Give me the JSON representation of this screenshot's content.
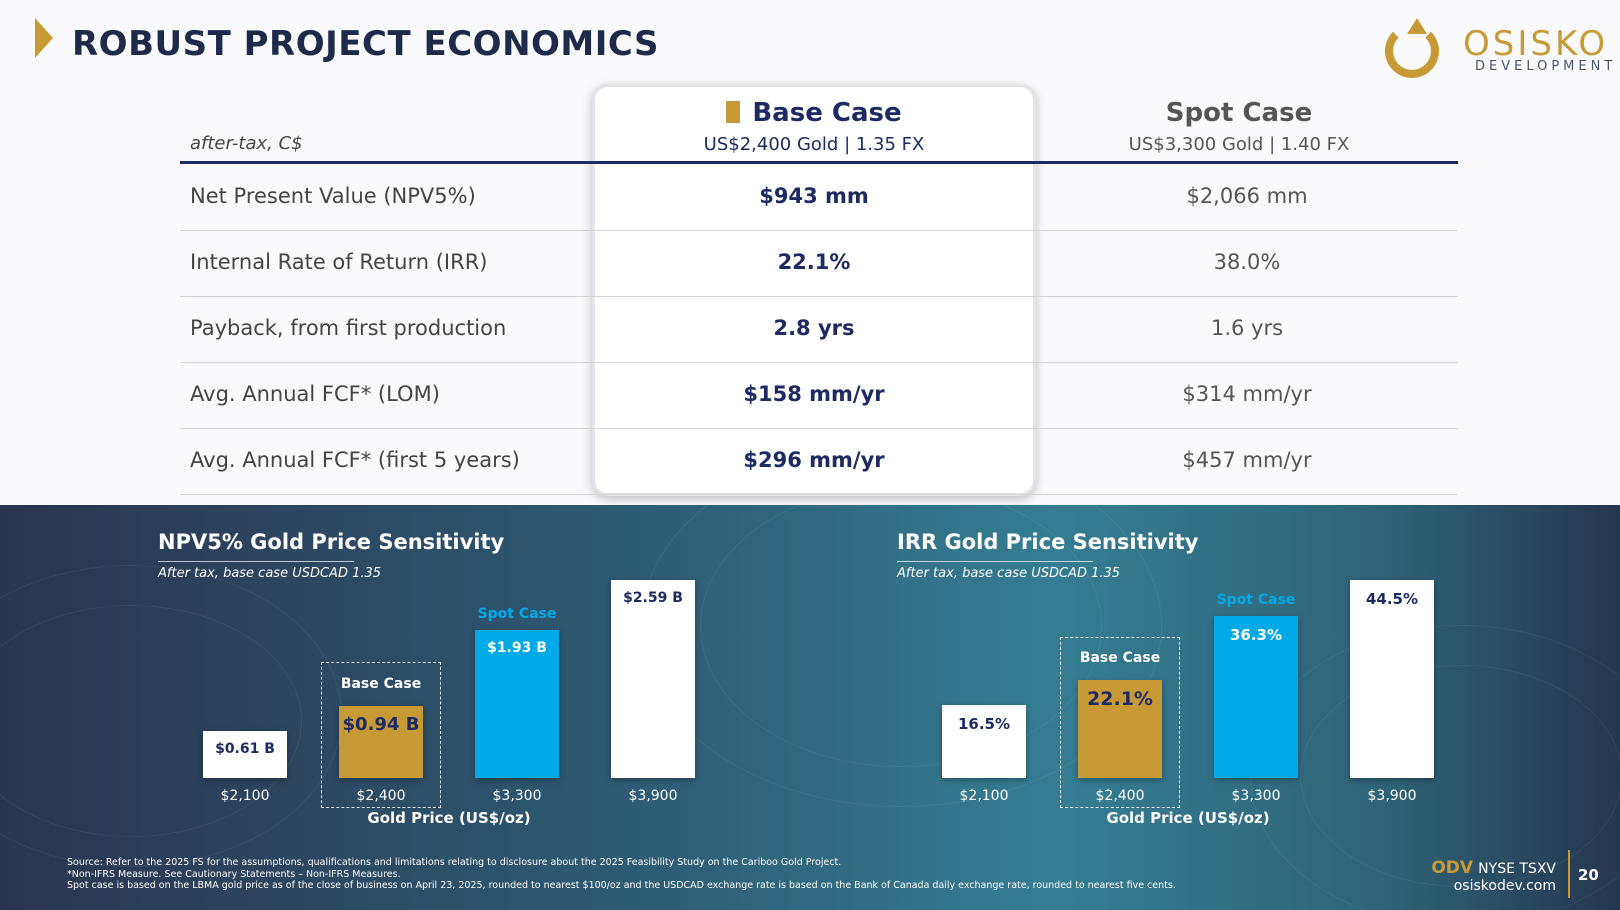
{
  "title": "ROBUST PROJECT ECONOMICS",
  "logo": {
    "name": "OSISKO",
    "sub": "DEVELOPMENT"
  },
  "table": {
    "note": "after-tax, C$",
    "base_header": "Base Case",
    "base_sub": "US$2,400 Gold | 1.35 FX",
    "spot_header": "Spot Case",
    "spot_sub": "US$3,300 Gold | 1.40 FX",
    "rows": [
      {
        "label": "Net Present Value (NPV5%)",
        "base": "$943 mm",
        "spot": "$2,066 mm"
      },
      {
        "label": "Internal Rate of Return (IRR)",
        "base": "22.1%",
        "spot": "38.0%"
      },
      {
        "label": "Payback, from first production",
        "base": "2.8 yrs",
        "spot": "1.6 yrs"
      },
      {
        "label": "Avg. Annual FCF* (LOM)",
        "base": "$158 mm/yr",
        "spot": "$314 mm/yr"
      },
      {
        "label": "Avg. Annual FCF* (first 5 years)",
        "base": "$296 mm/yr",
        "spot": "$457 mm/yr"
      }
    ]
  },
  "chart_data": [
    {
      "type": "bar",
      "title": "NPV5% Gold Price Sensitivity",
      "subtitle": "After tax, base case USDCAD 1.35",
      "xlabel": "Gold Price (US$/oz)",
      "categories": [
        "$2,100",
        "$2,400",
        "$3,300",
        "$3,900"
      ],
      "values": [
        0.61,
        0.94,
        1.93,
        2.59
      ],
      "value_labels": [
        "$0.61 B",
        "$0.94 B",
        "$1.93 B",
        "$2.59 B"
      ],
      "ylim": [
        0,
        2.59
      ],
      "annotations": {
        "base_case": "Base Case",
        "spot_case": "Spot Case"
      },
      "colors": [
        "#ffffff",
        "#c89a35",
        "#00a9e8",
        "#ffffff"
      ]
    },
    {
      "type": "bar",
      "title": "IRR Gold Price Sensitivity",
      "subtitle": "After tax, base case USDCAD 1.35",
      "xlabel": "Gold Price (US$/oz)",
      "categories": [
        "$2,100",
        "$2,400",
        "$3,300",
        "$3,900"
      ],
      "values": [
        16.5,
        22.1,
        36.3,
        44.5
      ],
      "value_labels": [
        "16.5%",
        "22.1%",
        "36.3%",
        "44.5%"
      ],
      "ylim": [
        0,
        44.5
      ],
      "annotations": {
        "base_case": "Base Case",
        "spot_case": "Spot Case"
      },
      "colors": [
        "#ffffff",
        "#c89a35",
        "#00a9e8",
        "#ffffff"
      ]
    }
  ],
  "footer": {
    "line1": "Source: Refer to the 2025 FS for the assumptions, qualifications and limitations relating to disclosure about the 2025 Feasibility Study on the Cariboo Gold Project.",
    "line2": "*Non-IFRS Measure. See Cautionary Statements – Non-IFRS Measures.",
    "line3": "Spot case is based on the LBMA gold price as of the close of business on April 23, 2025, rounded to nearest $100/oz and the USDCAD exchange rate is based on the Bank of Canada daily exchange rate, rounded to nearest five cents.",
    "ticker": "ODV",
    "exchanges": "NYSE TSXV",
    "website": "osiskodev.com",
    "page": "20"
  }
}
